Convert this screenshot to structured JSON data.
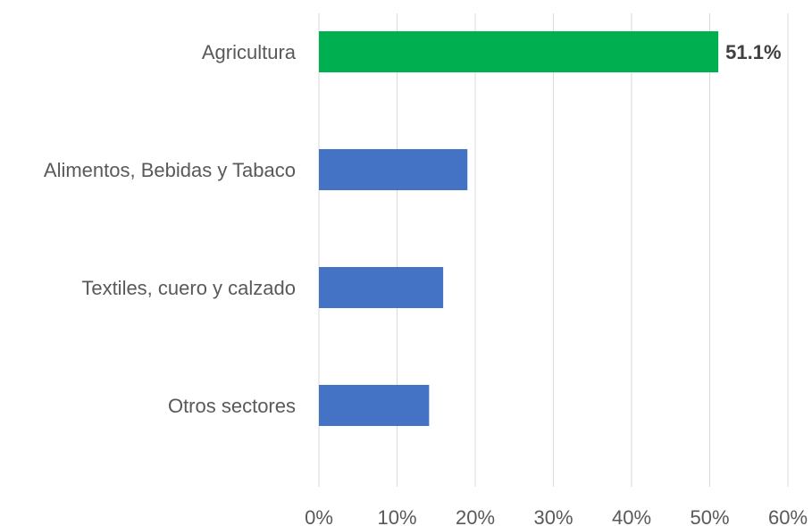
{
  "chart_data": {
    "type": "bar",
    "orientation": "horizontal",
    "categories": [
      "Agricultura",
      "Alimentos, Bebidas y Tabaco",
      "Textiles, cuero y calzado",
      "Otros sectores"
    ],
    "values": [
      51.1,
      19.0,
      15.9,
      14.1
    ],
    "bar_colors": [
      "#00b050",
      "#4472c4",
      "#4472c4",
      "#4472c4"
    ],
    "data_labels": [
      "51.1%",
      "",
      "",
      ""
    ],
    "xlim": [
      0,
      60
    ],
    "x_ticks": [
      0,
      10,
      20,
      30,
      40,
      50,
      60
    ],
    "x_tick_labels": [
      "0%",
      "10%",
      "20%",
      "30%",
      "40%",
      "50%",
      "60%"
    ],
    "grid": true,
    "title": "",
    "xlabel": "",
    "ylabel": ""
  }
}
